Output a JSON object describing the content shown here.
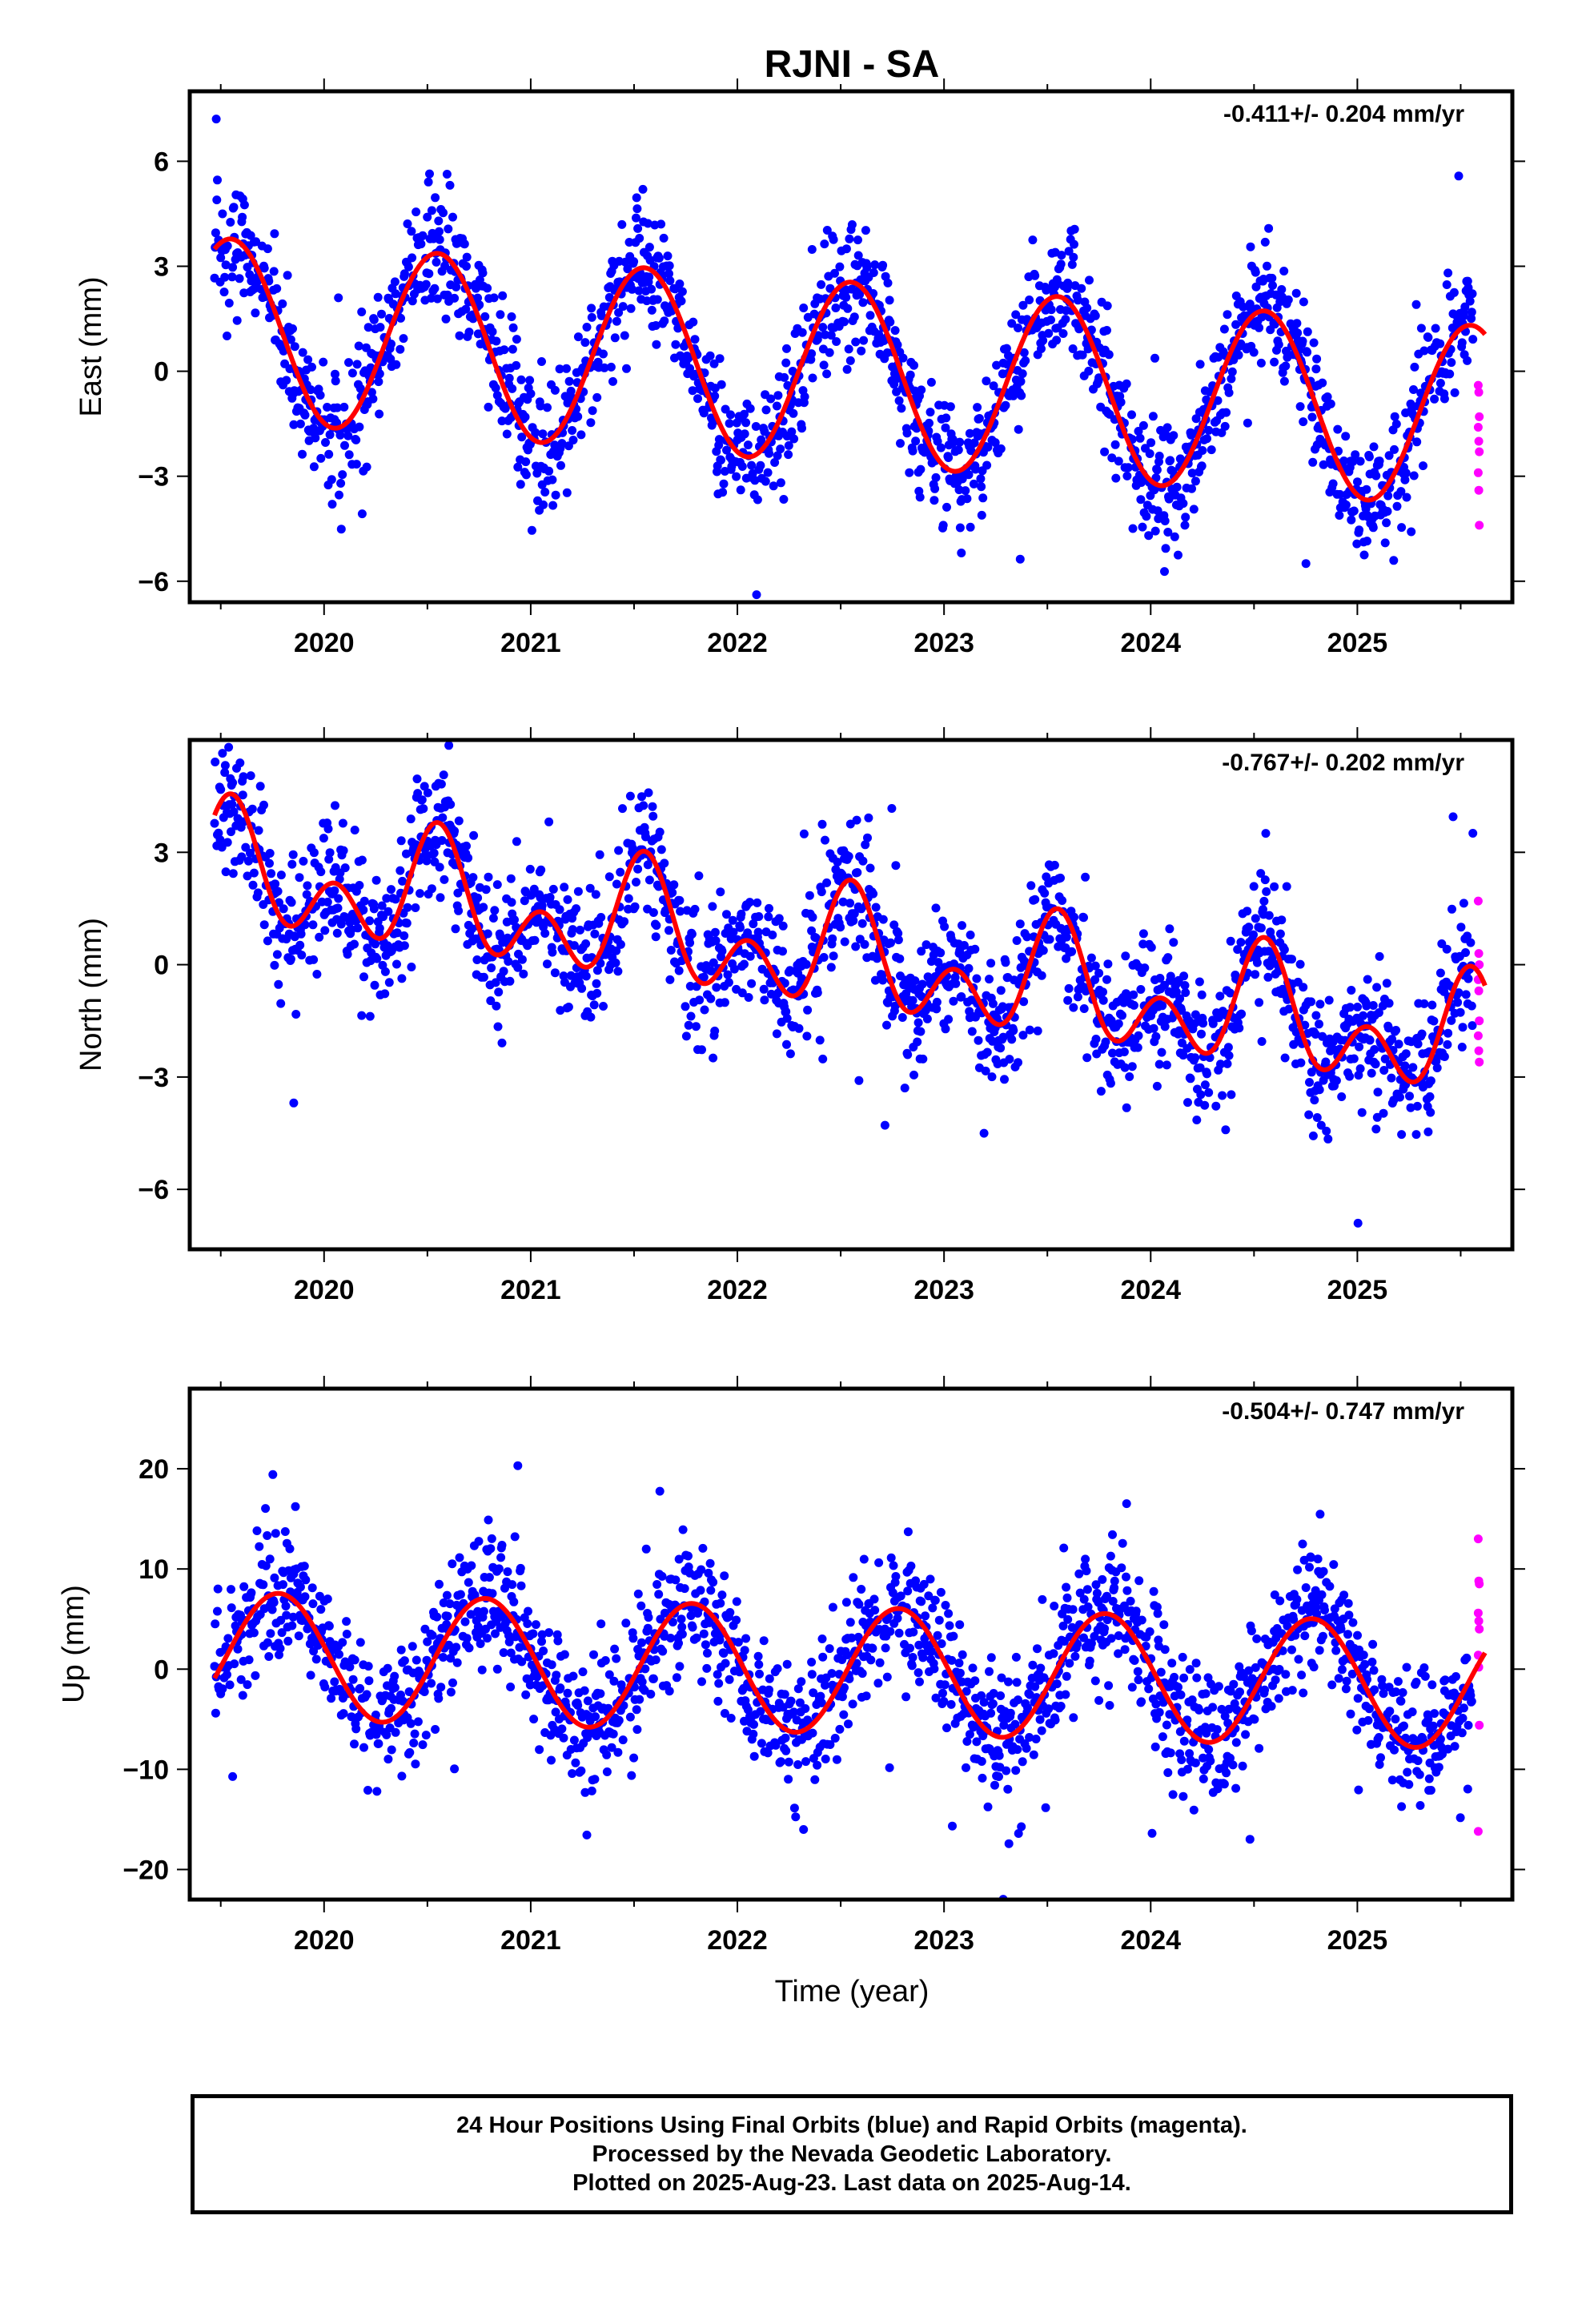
{
  "title": "RJNI - SA",
  "colors": {
    "final": "#0000ff",
    "rapid": "#ff00ff",
    "fit": "#ff0000"
  },
  "xlabel": "Time (year)",
  "chart_data": [
    {
      "type": "scatter",
      "ylabel": "East (mm)",
      "rate": "-0.411+/- 0.204 mm/yr",
      "xlim": [
        2019.35,
        2025.75
      ],
      "ylim": [
        -6.6,
        8.0
      ],
      "xticks": [
        2020,
        2021,
        2022,
        2023,
        2024,
        2025
      ],
      "yticks": [
        -6,
        -3,
        0,
        3,
        6
      ],
      "model": {
        "x0": 2019.5,
        "intercept": 1.2,
        "trend": -0.411,
        "annual_amp": 2.6,
        "annual_peak": 0.55,
        "semiannual_amp": 0.0,
        "semiannual_peak": 0.0,
        "scatter": 0.9,
        "outlier_sigma": 3.0
      },
      "rapid_values": [
        -0.4,
        -0.6,
        -1.3,
        -1.6,
        -2.0,
        -2.3,
        -2.9,
        -3.4,
        -4.4
      ]
    },
    {
      "type": "scatter",
      "ylabel": "North (mm)",
      "rate": "-0.767+/- 0.202 mm/yr",
      "xlim": [
        2019.35,
        2025.75
      ],
      "ylim": [
        -7.6,
        6.0
      ],
      "xticks": [
        2020,
        2021,
        2022,
        2023,
        2024,
        2025
      ],
      "yticks": [
        -6,
        -3,
        0,
        3
      ],
      "model": {
        "x0": 2019.5,
        "intercept": 2.5,
        "trend": -0.767,
        "annual_amp": 1.0,
        "annual_peak": 0.55,
        "semiannual_amp": 1.1,
        "semiannual_peak": 0.05,
        "scatter": 0.9,
        "outlier_sigma": 3.0
      },
      "rapid_values": [
        1.7,
        0.3,
        0.0,
        -0.4,
        -0.7,
        -1.5,
        -1.9,
        -2.3,
        -2.6
      ]
    },
    {
      "type": "scatter",
      "ylabel": "Up (mm)",
      "rate": "-0.504+/- 0.747 mm/yr",
      "xlim": [
        2019.35,
        2025.75
      ],
      "ylim": [
        -23.0,
        28.0
      ],
      "xticks": [
        2020,
        2021,
        2022,
        2023,
        2024,
        2025
      ],
      "yticks": [
        -20,
        -10,
        0,
        10,
        20
      ],
      "model": {
        "x0": 2019.5,
        "intercept": 1.4,
        "trend": -0.504,
        "annual_amp": 6.3,
        "annual_peak": 0.78,
        "semiannual_amp": 0.0,
        "semiannual_peak": 0.0,
        "scatter": 3.3,
        "outlier_sigma": 11.0
      },
      "rapid_values": [
        13.0,
        8.8,
        8.5,
        5.6,
        4.8,
        4.0,
        1.4,
        0.2,
        -5.6,
        -16.2
      ]
    }
  ],
  "footer": {
    "line1": "24 Hour Positions Using Final Orbits (blue) and Rapid Orbits (magenta).",
    "line2": "Processed by the Nevada Geodetic Laboratory.",
    "line3": "Plotted on 2025-Aug-23. Last data on 2025-Aug-14."
  }
}
